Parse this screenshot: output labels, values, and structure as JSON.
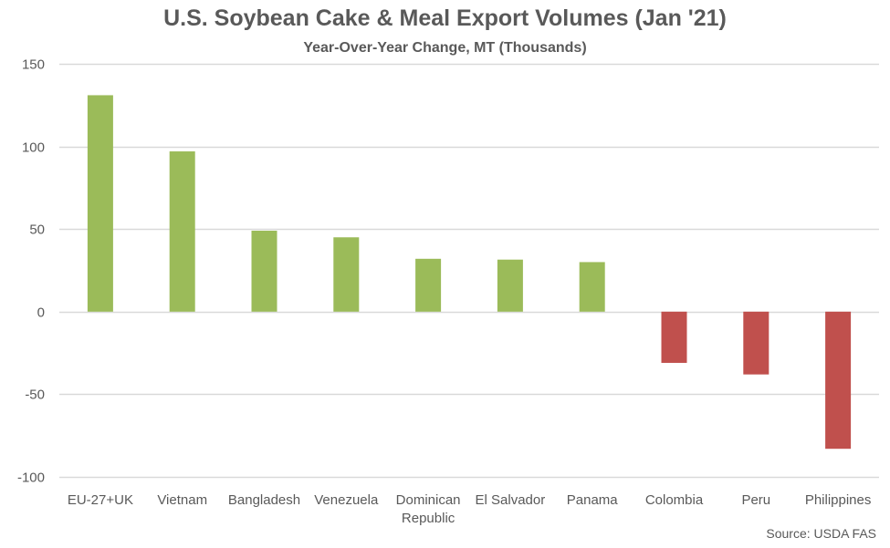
{
  "chart_data": {
    "type": "bar",
    "title": "U.S. Soybean Cake & Meal Export Volumes (Jan '21)",
    "subtitle": "Year-Over-Year Change, MT (Thousands)",
    "xlabel": "",
    "ylabel": "",
    "categories": [
      "EU-27+UK",
      "Vietnam",
      "Bangladesh",
      "Venezuela",
      "Dominican Republic",
      "El Salvador",
      "Panama",
      "Colombia",
      "Peru",
      "Philippines"
    ],
    "values": [
      131,
      97,
      49,
      45,
      32,
      31.5,
      30,
      -31,
      -38,
      -83
    ],
    "ylim": [
      -100,
      150
    ],
    "yticks": [
      150,
      100,
      50,
      0,
      -50,
      -100
    ],
    "grid": true,
    "legend": "none",
    "colors": {
      "positive": "#9bbb59",
      "negative": "#c0504d",
      "grid": "#d9d9d9",
      "text": "#595959"
    },
    "source": "Source: USDA FAS"
  }
}
